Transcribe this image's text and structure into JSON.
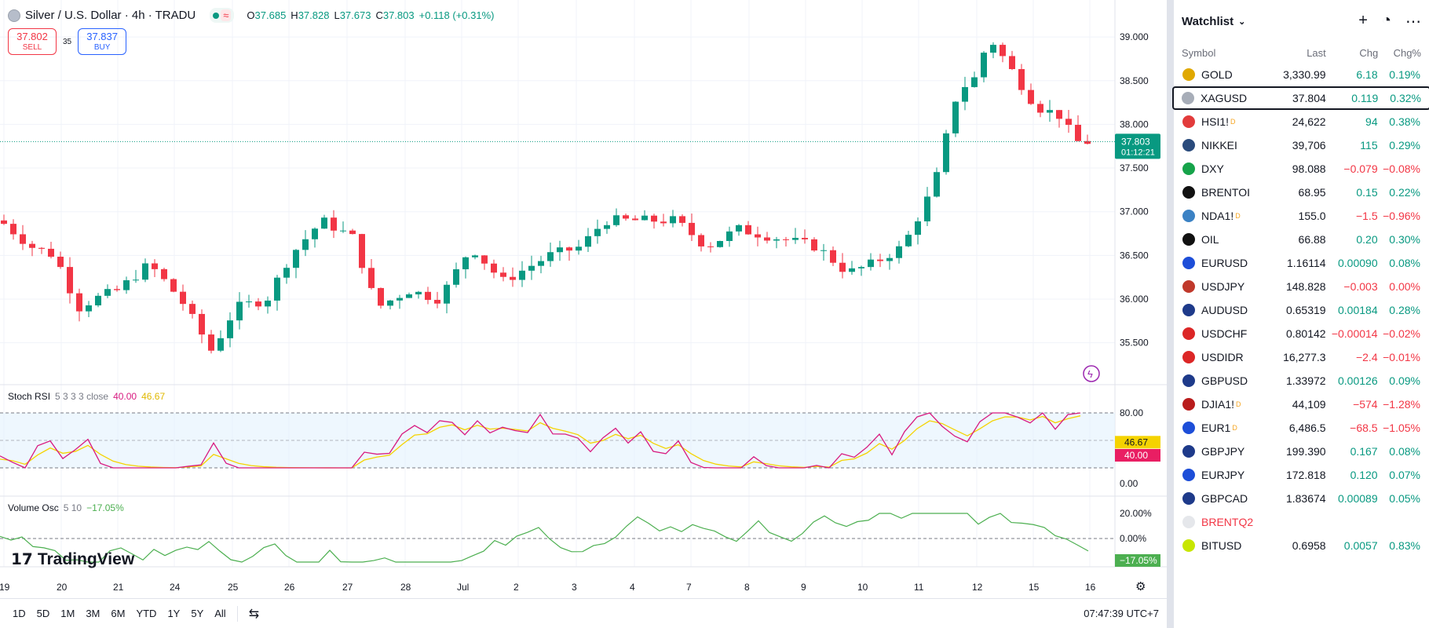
{
  "header": {
    "title": "Silver / U.S. Dollar · 4h · TRADU",
    "open_k": "O",
    "open": "37.685",
    "high_k": "H",
    "high": "37.828",
    "low_k": "L",
    "low": "37.673",
    "close_k": "C",
    "close": "37.803",
    "change": "+0.118 (+0.31%)"
  },
  "trade": {
    "sell_price": "37.802",
    "sell_label": "SELL",
    "spread": "35",
    "buy_price": "37.837",
    "buy_label": "BUY"
  },
  "price_axis": [
    "39.000",
    "38.500",
    "38.000",
    "37.500",
    "37.000",
    "36.500",
    "36.000",
    "35.500"
  ],
  "last_price": {
    "value": "37.803",
    "countdown": "01:12:21"
  },
  "stoch": {
    "name": "Stoch RSI",
    "params": "5 3 3 3 close",
    "k": "40.00",
    "d": "46.67",
    "levels": [
      "80.00",
      "0.00"
    ]
  },
  "volosc": {
    "name": "Volume Osc",
    "params": "5 10",
    "value": "−17.05%",
    "levels": [
      "20.00%",
      "0.00%"
    ]
  },
  "time_axis": [
    "19",
    "20",
    "21",
    "24",
    "25",
    "26",
    "27",
    "28",
    "Jul",
    "2",
    "3",
    "4",
    "7",
    "8",
    "9",
    "10",
    "11",
    "12",
    "15",
    "16"
  ],
  "logo": "TradingView",
  "ranges": [
    "1D",
    "5D",
    "1M",
    "3M",
    "6M",
    "YTD",
    "1Y",
    "5Y",
    "All"
  ],
  "clock": "07:47:39 UTC+7",
  "colors": {
    "up": "#089981",
    "down": "#f23645",
    "stoch_k": "#d81b80",
    "stoch_d": "#f5d300",
    "osc": "#4caf50"
  },
  "watchlist": {
    "title": "Watchlist",
    "cols": {
      "symbol": "Symbol",
      "last": "Last",
      "chg": "Chg",
      "pct": "Chg%"
    },
    "rows": [
      {
        "sym": "GOLD",
        "icon": "gold-icon",
        "bg": "#e0a800",
        "last": "3,330.99",
        "chg": "6.18",
        "pct": "0.19%",
        "dir": "pos"
      },
      {
        "sym": "XAGUSD",
        "icon": "silver-icon",
        "bg": "#a7adb8",
        "last": "37.804",
        "chg": "0.119",
        "pct": "0.32%",
        "dir": "pos",
        "sel": true
      },
      {
        "sym": "HSI1!",
        "icon": "hsi-icon",
        "bg": "#e23b3b",
        "last": "24,622",
        "chg": "94",
        "pct": "0.38%",
        "dir": "pos",
        "sup": "D"
      },
      {
        "sym": "NIKKEI",
        "icon": "nikkei-icon",
        "bg": "#2a4b7c",
        "last": "39,706",
        "chg": "115",
        "pct": "0.29%",
        "dir": "pos"
      },
      {
        "sym": "DXY",
        "icon": "dollar-icon",
        "bg": "#16a34a",
        "last": "98.088",
        "chg": "−0.079",
        "pct": "−0.08%",
        "dir": "neg"
      },
      {
        "sym": "BRENTOI",
        "icon": "oil-drop-icon",
        "bg": "#111111",
        "last": "68.95",
        "chg": "0.15",
        "pct": "0.22%",
        "dir": "pos"
      },
      {
        "sym": "NDA1!",
        "icon": "nda-icon",
        "bg": "#3b82c4",
        "last": "155.0",
        "chg": "−1.5",
        "pct": "−0.96%",
        "dir": "neg",
        "sup": "D"
      },
      {
        "sym": "OIL",
        "icon": "oil-drop-icon",
        "bg": "#111111",
        "last": "66.88",
        "chg": "0.20",
        "pct": "0.30%",
        "dir": "pos"
      },
      {
        "sym": "EURUSD",
        "icon": "flag-eu-us-icon",
        "bg": "#1d4ed8",
        "last": "1.16114",
        "chg": "0.00090",
        "pct": "0.08%",
        "dir": "pos"
      },
      {
        "sym": "USDJPY",
        "icon": "flag-us-jp-icon",
        "bg": "#c0392b",
        "last": "148.828",
        "chg": "−0.003",
        "pct": "0.00%",
        "dir": "neg"
      },
      {
        "sym": "AUDUSD",
        "icon": "flag-au-us-icon",
        "bg": "#1e3a8a",
        "last": "0.65319",
        "chg": "0.00184",
        "pct": "0.28%",
        "dir": "pos"
      },
      {
        "sym": "USDCHF",
        "icon": "flag-us-ch-icon",
        "bg": "#dc2626",
        "last": "0.80142",
        "chg": "−0.00014",
        "pct": "−0.02%",
        "dir": "neg"
      },
      {
        "sym": "USDIDR",
        "icon": "flag-us-id-icon",
        "bg": "#dc2626",
        "last": "16,277.3",
        "chg": "−2.4",
        "pct": "−0.01%",
        "dir": "neg"
      },
      {
        "sym": "GBPUSD",
        "icon": "flag-gb-us-icon",
        "bg": "#1e3a8a",
        "last": "1.33972",
        "chg": "0.00126",
        "pct": "0.09%",
        "dir": "pos"
      },
      {
        "sym": "DJIA1!",
        "icon": "flag-us-icon",
        "bg": "#b91c1c",
        "last": "44,109",
        "chg": "−574",
        "pct": "−1.28%",
        "dir": "neg",
        "sup": "D"
      },
      {
        "sym": "EUR1",
        "icon": "flag-eu-icon",
        "bg": "#1d4ed8",
        "last": "6,486.5",
        "chg": "−68.5",
        "pct": "−1.05%",
        "dir": "neg",
        "sup": "D"
      },
      {
        "sym": "GBPJPY",
        "icon": "flag-gb-jp-icon",
        "bg": "#1e3a8a",
        "last": "199.390",
        "chg": "0.167",
        "pct": "0.08%",
        "dir": "pos"
      },
      {
        "sym": "EURJPY",
        "icon": "flag-eu-jp-icon",
        "bg": "#1d4ed8",
        "last": "172.818",
        "chg": "0.120",
        "pct": "0.07%",
        "dir": "pos"
      },
      {
        "sym": "GBPCAD",
        "icon": "flag-gb-ca-icon",
        "bg": "#1e3a8a",
        "last": "1.83674",
        "chg": "0.00089",
        "pct": "0.05%",
        "dir": "pos"
      },
      {
        "sym": "BRENTQ2",
        "icon": "brent-icon",
        "bg": "#e5e7eb",
        "last": "",
        "chg": "",
        "pct": "",
        "dir": "muted"
      },
      {
        "sym": "BITUSD",
        "icon": "bit-icon",
        "bg": "#c7e600",
        "last": "0.6958",
        "chg": "0.0057",
        "pct": "0.83%",
        "dir": "pos"
      }
    ]
  }
}
